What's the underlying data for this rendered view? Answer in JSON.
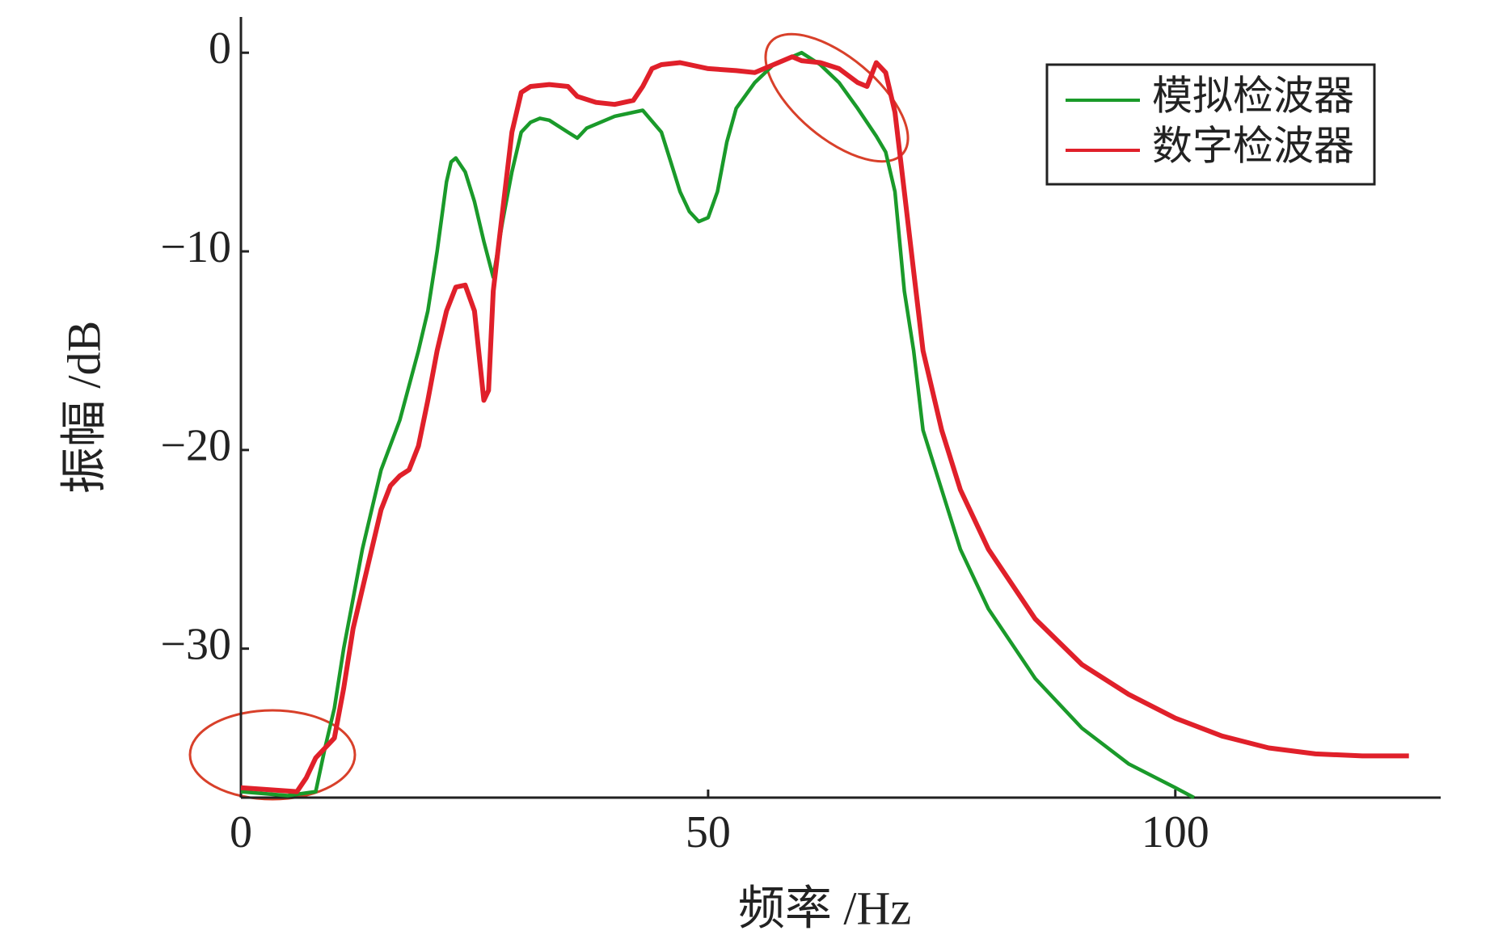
{
  "chart_data": {
    "type": "line",
    "xlabel": "频率 /Hz",
    "ylabel": "振幅 /dB",
    "xlim": [
      0,
      128.4
    ],
    "ylim": [
      -37.5,
      1.8
    ],
    "xticks": [
      0,
      50,
      100
    ],
    "yticks": [
      {
        "value": 0,
        "label": "0"
      },
      {
        "value": -10,
        "label": "−10"
      },
      {
        "value": -20,
        "label": "−20"
      },
      {
        "value": -30,
        "label": "−30"
      }
    ],
    "legend": "upper right",
    "series": [
      {
        "name": "模拟检波器",
        "color": "#1a9a2a",
        "x": [
          0,
          5,
          8,
          9,
          10,
          11,
          12,
          13,
          15,
          17,
          19,
          20,
          21,
          22,
          22.5,
          23,
          24,
          25,
          26,
          27,
          28,
          29,
          30,
          31,
          32,
          33,
          35,
          36,
          37,
          40,
          43,
          45,
          46,
          47,
          48,
          49,
          50,
          51,
          52,
          53,
          55,
          57,
          59,
          60,
          62,
          64,
          66,
          68,
          69,
          70,
          71,
          72,
          73,
          75,
          77,
          80,
          85,
          90,
          95,
          100,
          102
        ],
        "values": [
          -37.2,
          -37.4,
          -37.2,
          -35,
          -33,
          -30,
          -27.5,
          -25,
          -21,
          -18.5,
          -15,
          -13,
          -10,
          -6.5,
          -5.5,
          -5.3,
          -6,
          -7.5,
          -9.5,
          -11.3,
          -8.5,
          -6,
          -4,
          -3.5,
          -3.3,
          -3.4,
          -4,
          -4.3,
          -3.8,
          -3.2,
          -2.9,
          -4,
          -5.5,
          -7,
          -8,
          -8.5,
          -8.3,
          -7,
          -4.5,
          -2.8,
          -1.5,
          -0.6,
          -0.2,
          0,
          -0.6,
          -1.5,
          -2.8,
          -4.2,
          -5,
          -7,
          -12,
          -15,
          -19,
          -22,
          -25,
          -28,
          -31.5,
          -34,
          -35.8,
          -37,
          -37.5
        ]
      },
      {
        "name": "数字检波器",
        "color": "#e0202a",
        "x": [
          0,
          6,
          7,
          8,
          10,
          11,
          12,
          13,
          14,
          15,
          16,
          17,
          18,
          19,
          20,
          21,
          22,
          23,
          24,
          25,
          26,
          26.5,
          27,
          28,
          29,
          30,
          31,
          33,
          35,
          36,
          38,
          40,
          42,
          43,
          44,
          45,
          47,
          50,
          53,
          55,
          57,
          59,
          60,
          62,
          64,
          66,
          67,
          68,
          69,
          70,
          71,
          72,
          73,
          75,
          77,
          80,
          85,
          90,
          95,
          100,
          105,
          110,
          115,
          120,
          125
        ],
        "values": [
          -37,
          -37.2,
          -36.5,
          -35.5,
          -34.5,
          -32,
          -29,
          -27,
          -25,
          -23,
          -21.8,
          -21.3,
          -21,
          -19.8,
          -17.5,
          -15,
          -13,
          -11.8,
          -11.7,
          -13,
          -17.5,
          -17,
          -12,
          -8,
          -4,
          -2,
          -1.7,
          -1.6,
          -1.7,
          -2.2,
          -2.5,
          -2.6,
          -2.4,
          -1.7,
          -0.8,
          -0.6,
          -0.5,
          -0.8,
          -0.9,
          -1,
          -0.6,
          -0.2,
          -0.4,
          -0.5,
          -0.8,
          -1.5,
          -1.7,
          -0.5,
          -1,
          -3,
          -7,
          -11,
          -15,
          -19,
          -22,
          -25,
          -28.5,
          -30.8,
          -32.3,
          -33.5,
          -34.4,
          -35,
          -35.3,
          -35.4,
          -35.4
        ]
      }
    ]
  }
}
